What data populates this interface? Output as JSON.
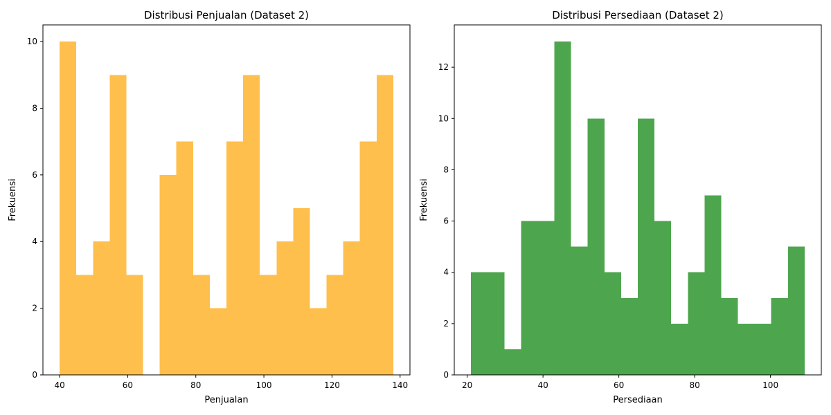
{
  "chart_data": [
    {
      "type": "bar",
      "title": "Distribusi Penjualan (Dataset 2)",
      "xlabel": "Penjualan",
      "ylabel": "Frekuensi",
      "color": "#ffbf4d",
      "x_ticks": [
        40,
        60,
        80,
        100,
        120,
        140
      ],
      "y_ticks": [
        0,
        2,
        4,
        6,
        8,
        10
      ],
      "xlim": [
        35.1,
        142.9
      ],
      "ylim": [
        0,
        10.5
      ],
      "bins": [
        {
          "x0": 40.0,
          "x1": 44.9,
          "count": 10
        },
        {
          "x0": 44.9,
          "x1": 49.8,
          "count": 3
        },
        {
          "x0": 49.8,
          "x1": 54.7,
          "count": 4
        },
        {
          "x0": 54.7,
          "x1": 59.6,
          "count": 9
        },
        {
          "x0": 59.6,
          "x1": 64.5,
          "count": 3
        },
        {
          "x0": 64.5,
          "x1": 69.4,
          "count": 0
        },
        {
          "x0": 69.4,
          "x1": 74.3,
          "count": 6
        },
        {
          "x0": 74.3,
          "x1": 79.2,
          "count": 7
        },
        {
          "x0": 79.2,
          "x1": 84.1,
          "count": 3
        },
        {
          "x0": 84.1,
          "x1": 89.0,
          "count": 2
        },
        {
          "x0": 89.0,
          "x1": 93.9,
          "count": 7
        },
        {
          "x0": 93.9,
          "x1": 98.8,
          "count": 9
        },
        {
          "x0": 98.8,
          "x1": 103.7,
          "count": 3
        },
        {
          "x0": 103.7,
          "x1": 108.6,
          "count": 4
        },
        {
          "x0": 108.6,
          "x1": 113.5,
          "count": 5
        },
        {
          "x0": 113.5,
          "x1": 118.4,
          "count": 2
        },
        {
          "x0": 118.4,
          "x1": 123.3,
          "count": 3
        },
        {
          "x0": 123.3,
          "x1": 128.2,
          "count": 4
        },
        {
          "x0": 128.2,
          "x1": 133.1,
          "count": 7
        },
        {
          "x0": 133.1,
          "x1": 138.0,
          "count": 9
        }
      ]
    },
    {
      "type": "bar",
      "title": "Distribusi Persediaan (Dataset 2)",
      "xlabel": "Persediaan",
      "ylabel": "Frekuensi",
      "color": "#4da64d",
      "x_ticks": [
        20,
        40,
        60,
        80,
        100
      ],
      "y_ticks": [
        0,
        2,
        4,
        6,
        8,
        10,
        12
      ],
      "xlim": [
        16.6,
        113.4
      ],
      "ylim": [
        0,
        13.65
      ],
      "bins": [
        {
          "x0": 21.0,
          "x1": 25.4,
          "count": 4
        },
        {
          "x0": 25.4,
          "x1": 29.8,
          "count": 4
        },
        {
          "x0": 29.8,
          "x1": 34.2,
          "count": 1
        },
        {
          "x0": 34.2,
          "x1": 38.6,
          "count": 6
        },
        {
          "x0": 38.6,
          "x1": 43.0,
          "count": 6
        },
        {
          "x0": 43.0,
          "x1": 47.4,
          "count": 13
        },
        {
          "x0": 47.4,
          "x1": 51.8,
          "count": 5
        },
        {
          "x0": 51.8,
          "x1": 56.2,
          "count": 10
        },
        {
          "x0": 56.2,
          "x1": 60.6,
          "count": 4
        },
        {
          "x0": 60.6,
          "x1": 65.0,
          "count": 3
        },
        {
          "x0": 65.0,
          "x1": 69.4,
          "count": 10
        },
        {
          "x0": 69.4,
          "x1": 73.8,
          "count": 6
        },
        {
          "x0": 73.8,
          "x1": 78.2,
          "count": 2
        },
        {
          "x0": 78.2,
          "x1": 82.6,
          "count": 4
        },
        {
          "x0": 82.6,
          "x1": 87.0,
          "count": 7
        },
        {
          "x0": 87.0,
          "x1": 91.4,
          "count": 3
        },
        {
          "x0": 91.4,
          "x1": 95.8,
          "count": 2
        },
        {
          "x0": 95.8,
          "x1": 100.2,
          "count": 2
        },
        {
          "x0": 100.2,
          "x1": 104.6,
          "count": 3
        },
        {
          "x0": 104.6,
          "x1": 109.0,
          "count": 5
        }
      ]
    }
  ]
}
